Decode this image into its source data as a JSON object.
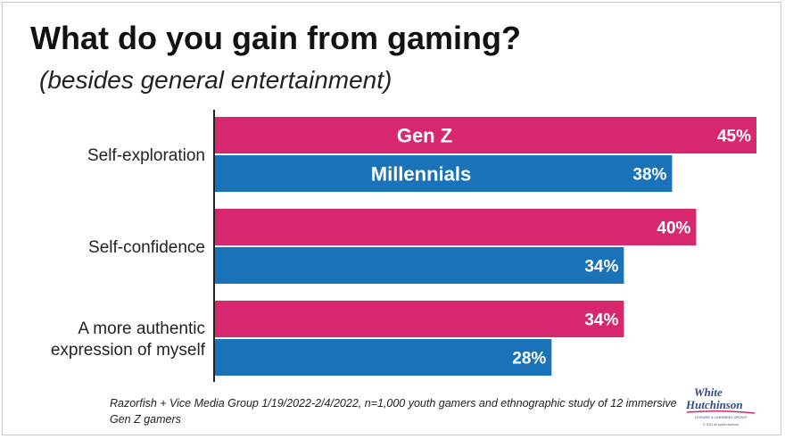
{
  "title": "What do you gain from gaming?",
  "subtitle": "(besides general entertainment)",
  "source": "Razorfish + Vice Media Group 1/19/2022-2/4/2022, n=1,000 youth gamers and ethnographic study of 12 immersive Gen Z gamers",
  "logo": {
    "line1": "White",
    "line2": "Hutchinson",
    "tagline": "LEISURE & LEARNING GROUP",
    "copyright": "© 2021 all rights reserved"
  },
  "colors": {
    "gen_z": "#d6276f",
    "millennials": "#1a73b8",
    "axis": "#222222",
    "logo_text": "#2c4a8c",
    "logo_swoosh": "#d6276f"
  },
  "chart_data": {
    "type": "bar",
    "orientation": "horizontal",
    "categories": [
      "Self-exploration",
      "Self-confidence",
      "A more authentic expression of myself"
    ],
    "category_lines": [
      [
        "Self-exploration"
      ],
      [
        "Self-confidence"
      ],
      [
        "A more authentic",
        "expression of myself"
      ]
    ],
    "series": [
      {
        "name": "Gen Z",
        "values": [
          45,
          40,
          34
        ],
        "labels": [
          "45%",
          "40%",
          "34%"
        ]
      },
      {
        "name": "Millennials",
        "values": [
          38,
          34,
          28
        ],
        "labels": [
          "38%",
          "34%",
          "28%"
        ]
      }
    ],
    "xlim": [
      0,
      45
    ],
    "value_unit": "%"
  }
}
